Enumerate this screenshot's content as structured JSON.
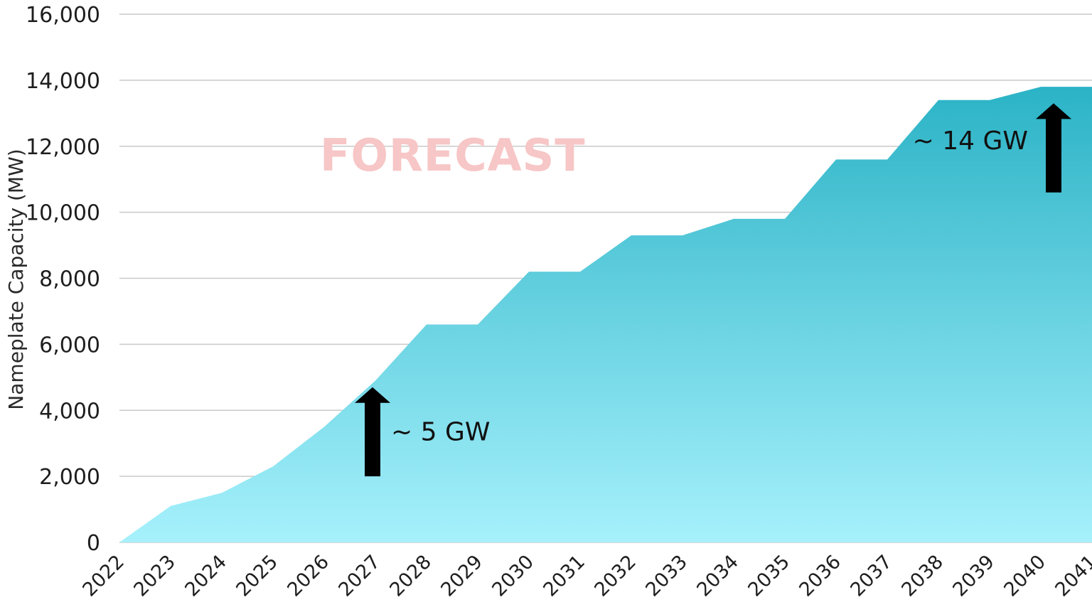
{
  "chart_data": {
    "type": "area",
    "title": "",
    "xlabel": "",
    "ylabel": "Nameplate Capacity (MW)",
    "ylim": [
      0,
      16000
    ],
    "yticks": [
      0,
      2000,
      4000,
      6000,
      8000,
      10000,
      12000,
      14000,
      16000
    ],
    "ytick_labels": [
      "0",
      "2,000",
      "4,000",
      "6,000",
      "8,000",
      "10,000",
      "12,000",
      "14,000",
      "16,000"
    ],
    "categories": [
      "2022",
      "2023",
      "2024",
      "2025",
      "2026",
      "2027",
      "2028",
      "2029",
      "2030",
      "2031",
      "2032",
      "2033",
      "2034",
      "2035",
      "2036",
      "2037",
      "2038",
      "2039",
      "2040",
      "2041"
    ],
    "values": [
      0,
      1100,
      1500,
      2300,
      3500,
      4900,
      6600,
      6600,
      8200,
      8200,
      9300,
      9300,
      9800,
      9800,
      11600,
      11600,
      13400,
      13400,
      13800,
      13800
    ],
    "grid": true,
    "fill_colors": {
      "top": "#2bb3c6",
      "bottom": "#a6f1fc"
    },
    "watermark": "FORECAST",
    "annotations": [
      {
        "label": "~ 5 GW",
        "category": "2027",
        "arrow_from": 2000,
        "arrow_to": 4700
      },
      {
        "label": "~ 14 GW",
        "category": "2040",
        "arrow_from": 10600,
        "arrow_to": 13300
      }
    ]
  }
}
